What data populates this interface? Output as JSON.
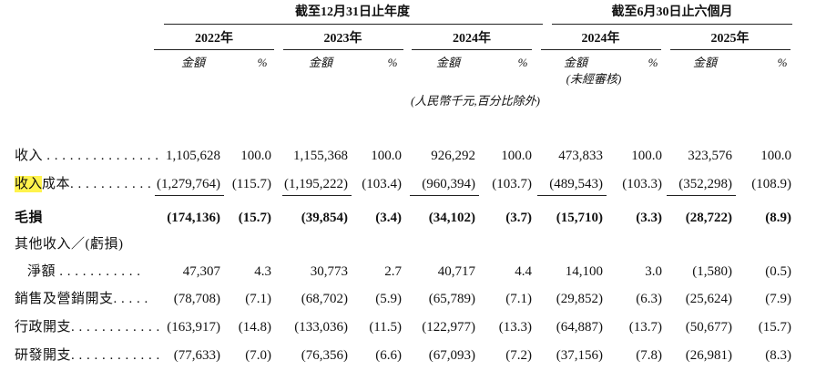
{
  "header": {
    "group_annual": "截至12月31日止年度",
    "group_interim": "截至6月30日止六個月",
    "columns": [
      {
        "year": "2022年",
        "amount": "金額",
        "pct": "%"
      },
      {
        "year": "2023年",
        "amount": "金額",
        "pct": "%"
      },
      {
        "year": "2024年",
        "amount": "金額",
        "pct": "%"
      },
      {
        "year": "2024年",
        "amount": "金額",
        "pct": "%",
        "note": "(未經審核)"
      },
      {
        "year": "2025年",
        "amount": "金額",
        "pct": "%"
      }
    ],
    "unit_note": "(人民幣千元,百分比除外)"
  },
  "table": {
    "rows": [
      {
        "label": "收入 . . . . . . . . . . . . . . .",
        "cells": [
          "1,105,628",
          "100.0",
          "1,155,368",
          "100.0",
          "926,292",
          "100.0",
          "473,833",
          "100.0",
          "323,576",
          "100.0"
        ]
      },
      {
        "label_highlight": "收入",
        "label": "成本. . . . . . . . . . .",
        "cells": [
          "(1,279,764)",
          "(115.7)",
          "(1,195,222)",
          "(103.4)",
          "(960,394)",
          "(103.7)",
          "(489,543)",
          "(103.3)",
          "(352,298)",
          "(108.9)"
        ]
      },
      {
        "label": "毛損",
        "bold": true,
        "cells": [
          "(174,136)",
          "(15.7)",
          "(39,854)",
          "(3.4)",
          "(34,102)",
          "(3.7)",
          "(15,710)",
          "(3.3)",
          "(28,722)",
          "(8.9)"
        ]
      },
      {
        "label": "其他收入／(虧損)"
      },
      {
        "label": "淨額 . . . . . . . . . . .",
        "indent": true,
        "cells": [
          "47,307",
          "4.3",
          "30,773",
          "2.7",
          "40,717",
          "4.4",
          "14,100",
          "3.0",
          "(1,580)",
          "(0.5)"
        ]
      },
      {
        "label": "銷售及營銷開支. . . . .",
        "cells": [
          "(78,708)",
          "(7.1)",
          "(68,702)",
          "(5.9)",
          "(65,789)",
          "(7.1)",
          "(29,852)",
          "(6.3)",
          "(25,624)",
          "(7.9)"
        ]
      },
      {
        "label": "行政開支. . . . . . . . . . . .",
        "cells": [
          "(163,917)",
          "(14.8)",
          "(133,036)",
          "(11.5)",
          "(122,977)",
          "(13.3)",
          "(64,887)",
          "(13.7)",
          "(50,677)",
          "(15.7)"
        ]
      },
      {
        "label": "研發開支. . . . . . . . . . . .",
        "cells": [
          "(77,633)",
          "(7.0)",
          "(76,356)",
          "(6.6)",
          "(67,093)",
          "(7.2)",
          "(37,156)",
          "(7.8)",
          "(26,981)",
          "(8.3)"
        ]
      }
    ]
  }
}
